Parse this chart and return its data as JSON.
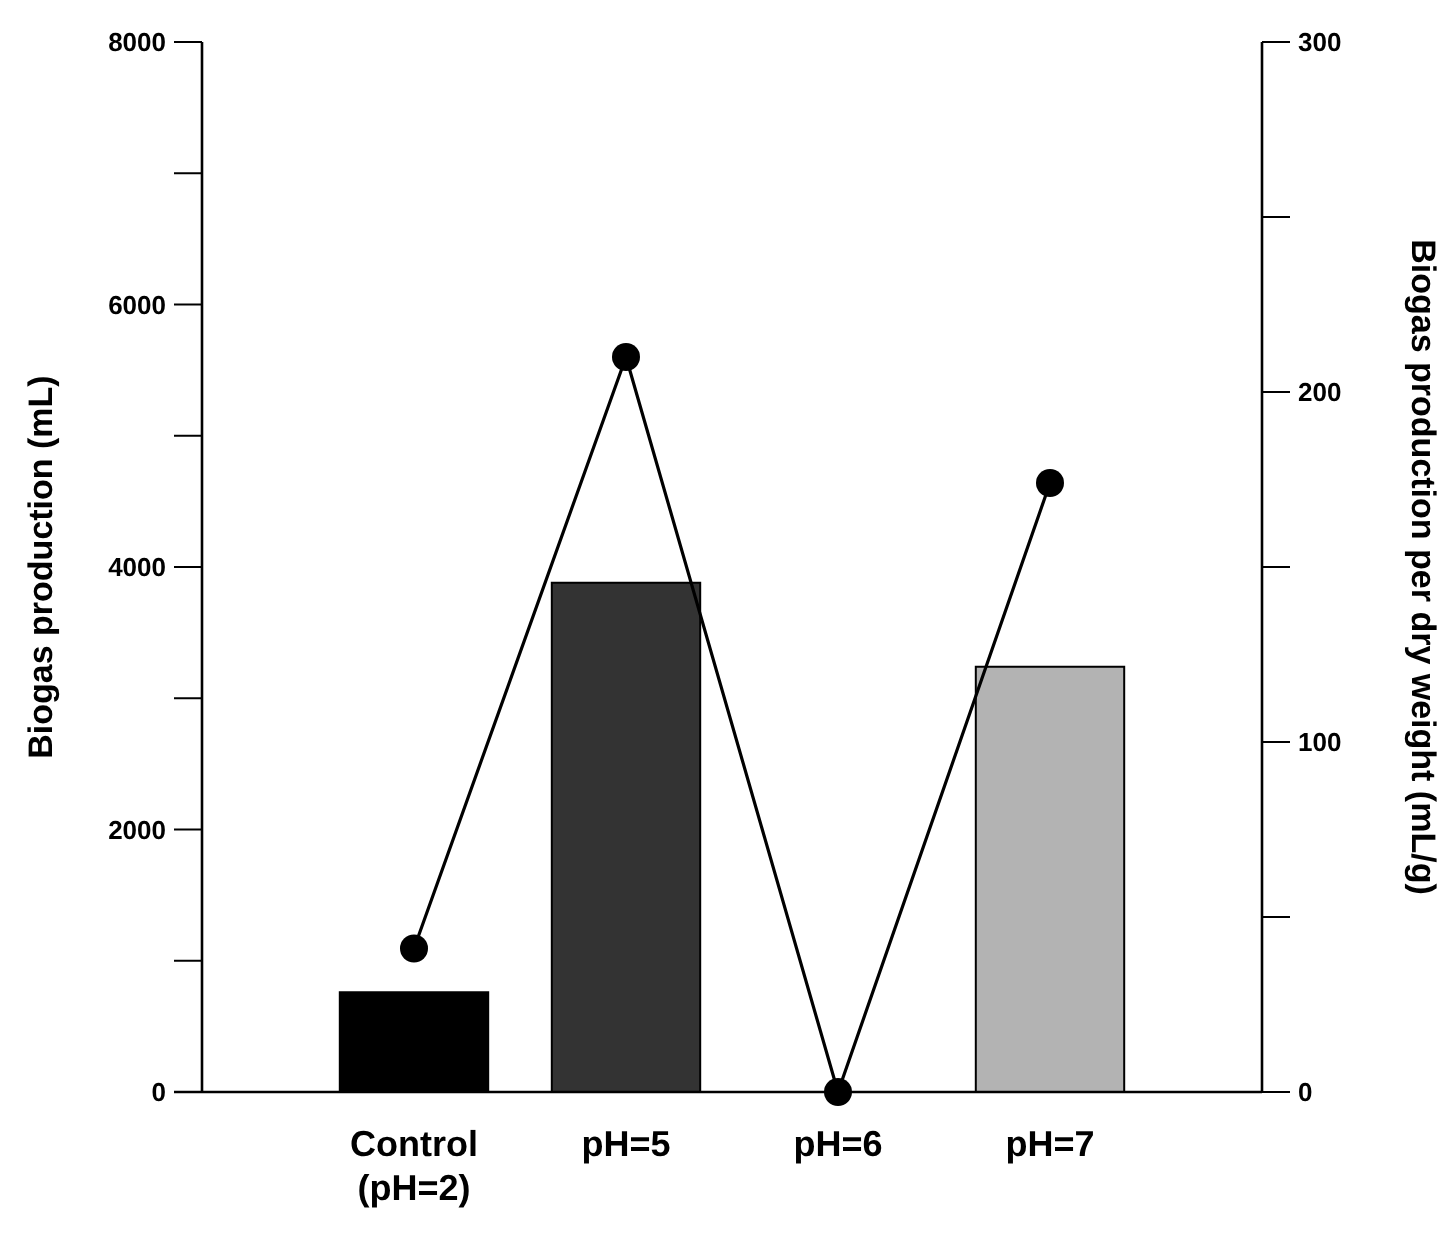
{
  "chart_data": {
    "type": "bar",
    "categories": [
      "Control\n(pH=2)",
      "pH=5",
      "pH=6",
      "pH=7"
    ],
    "ylabel": "Biogas production (mL)",
    "y2label": "Biogas production per dry weight (mL/g)",
    "series": [
      {
        "colors": [
          "#000000",
          "#333333",
          "#555555",
          "#b3b3b3"
        ],
        "values": [
          760,
          3880,
          0,
          3240
        ]
      },
      {
        "type": "line",
        "axis": "y2",
        "color": "#000000",
        "marker": "circle",
        "line_style": "solid",
        "values": [
          41,
          210,
          0,
          174
        ]
      }
    ],
    "ylim": [
      0,
      8000
    ],
    "yticks": [
      0,
      {
        "value": 1000,
        "label": null
      },
      2000,
      {
        "value": 3000,
        "label": null
      },
      4000,
      {
        "value": 5000,
        "label": null
      },
      6000,
      {
        "value": 7000,
        "label": null
      },
      8000
    ],
    "y2lim": [
      0,
      300
    ],
    "y2ticks": [
      0,
      {
        "value": 50,
        "label": null
      },
      100,
      {
        "value": 150,
        "label": null
      },
      200,
      {
        "value": 250,
        "label": null
      },
      300
    ],
    "grid": false
  }
}
